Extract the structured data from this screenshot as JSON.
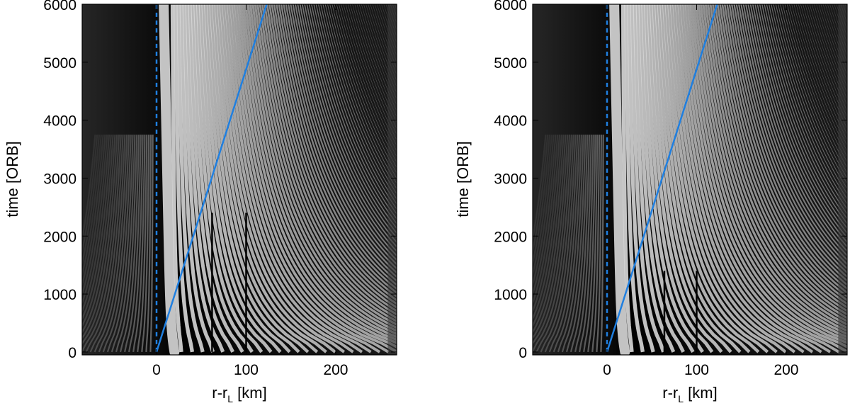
{
  "figure": {
    "panels": [
      {
        "xlabel_main": "r-r",
        "xlabel_sub": "L",
        "xlabel_unit": " [km]",
        "ylabel": "time [ORB]"
      },
      {
        "xlabel_main": "r-r",
        "xlabel_sub": "L",
        "xlabel_unit": " [km]",
        "ylabel": "time [ORB]"
      }
    ]
  },
  "colors": {
    "background_dark": "#000000",
    "ring_light": "#d8d8d8",
    "line_blue": "#1f7fe0"
  },
  "chart_data": [
    {
      "type": "heatmap",
      "xlim": [
        -83,
        268
      ],
      "ylim": [
        -50,
        6000
      ],
      "xticks": [
        0,
        100,
        200
      ],
      "yticks": [
        0,
        1000,
        2000,
        3000,
        4000,
        5000,
        6000
      ],
      "grid": false,
      "series": [
        {
          "style": "dashed",
          "color": "#1f7fe0",
          "x": [
            0,
            0
          ],
          "y": [
            0,
            6000
          ]
        },
        {
          "style": "solid",
          "color": "#1f7fe0",
          "x": [
            0,
            123
          ],
          "y": [
            0,
            6000
          ]
        }
      ],
      "stripe_edges": [
        62,
        100
      ]
    },
    {
      "type": "heatmap",
      "xlim": [
        -83,
        268
      ],
      "ylim": [
        -50,
        6000
      ],
      "xticks": [
        0,
        100,
        200
      ],
      "yticks": [
        0,
        1000,
        2000,
        3000,
        4000,
        5000,
        6000
      ],
      "grid": false,
      "series": [
        {
          "style": "dashed",
          "color": "#1f7fe0",
          "x": [
            0,
            0
          ],
          "y": [
            0,
            6000
          ]
        },
        {
          "style": "solid",
          "color": "#1f7fe0",
          "x": [
            0,
            123
          ],
          "y": [
            0,
            6000
          ]
        }
      ],
      "stripe_edges": [
        64,
        100
      ]
    }
  ]
}
